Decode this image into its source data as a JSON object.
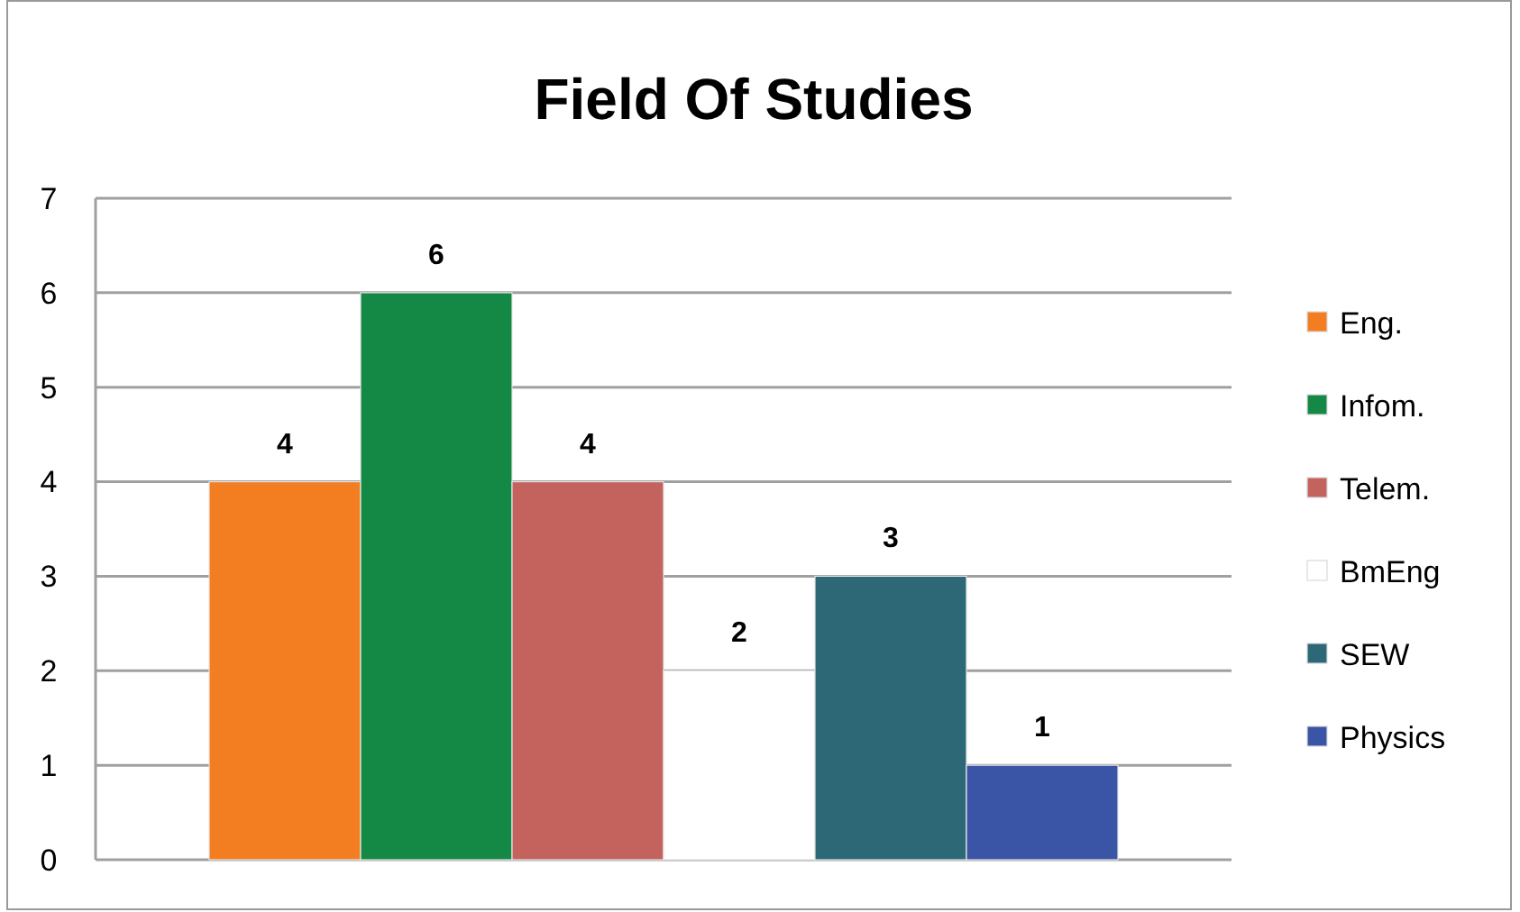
{
  "chart_data": {
    "type": "bar",
    "title": "Field Of Studies",
    "categories": [
      null
    ],
    "series": [
      {
        "name": "Eng.",
        "color": "#f37e22",
        "values": [
          4
        ]
      },
      {
        "name": "Infom.",
        "color": "#148845",
        "values": [
          6
        ]
      },
      {
        "name": "Telem.",
        "color": "#c4625e",
        "values": [
          4
        ]
      },
      {
        "name": "BmEng",
        "color": "#ffffff",
        "values": [
          2
        ]
      },
      {
        "name": "SEW",
        "color": "#2d6877",
        "values": [
          3
        ]
      },
      {
        "name": "Physics",
        "color": "#3a55a5",
        "values": [
          1
        ]
      }
    ],
    "ylim": [
      0,
      7
    ],
    "yticks": [
      0,
      1,
      2,
      3,
      4,
      5,
      6,
      7
    ],
    "grid": "y",
    "legend": "right",
    "data_labels": true
  }
}
